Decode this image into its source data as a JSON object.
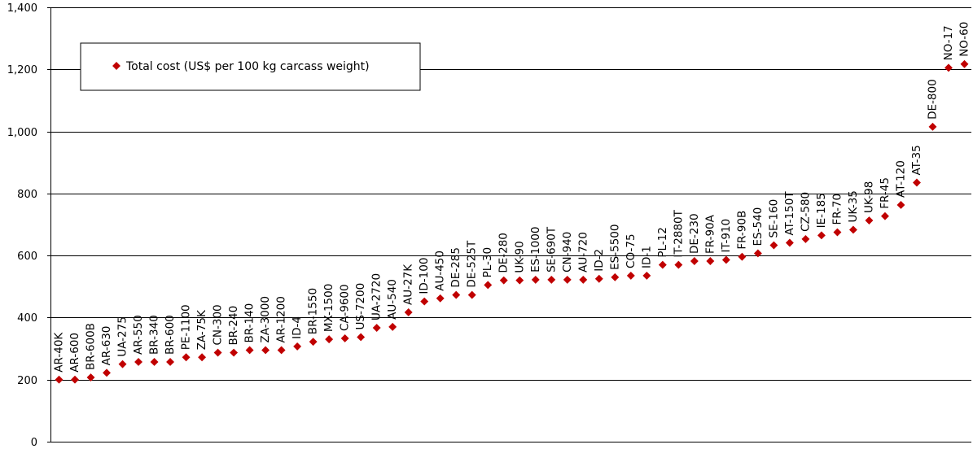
{
  "chart_data": {
    "type": "scatter",
    "title": "",
    "xlabel": "",
    "ylabel": "",
    "ylim": [
      0,
      1400
    ],
    "yticks": [
      0,
      200,
      400,
      600,
      800,
      1000,
      1200,
      1400
    ],
    "ytick_labels": [
      "0",
      "200",
      "400",
      "600",
      "800",
      "1,000",
      "1,200",
      "1,400"
    ],
    "grid": "horizontal",
    "legend_position": "upper-left",
    "series": [
      {
        "name": "Total cost (US$ per 100 kg carcass weight)",
        "color": "#C00000",
        "marker": "diamond",
        "labels": [
          "AR-40K",
          "AR-600",
          "BR-600B",
          "AR-630",
          "UA-275",
          "AR-550",
          "BR-340",
          "BR-600",
          "PE-1100",
          "ZA-75K",
          "CN-300",
          "BR-240",
          "BR-140",
          "ZA-3000",
          "AR-1200",
          "ID-4",
          "BR-1550",
          "MX-1500",
          "CA-9600",
          "US-7200",
          "UA-2720",
          "AU-540",
          "AU-27K",
          "ID-100",
          "AU-450",
          "DE-285",
          "DE-525T",
          "PL-30",
          "DE-280",
          "UK-90",
          "ES-1000",
          "SE-690T",
          "CN-940",
          "AU-720",
          "ID-2",
          "ES-5500",
          "CO-75",
          "ID-1",
          "PL-12",
          "IT-2880T",
          "DE-230",
          "FR-90A",
          "IT-910",
          "FR-90B",
          "ES-540",
          "SE-160",
          "AT-150T",
          "CZ-580",
          "IE-185",
          "FR-70",
          "UK-35",
          "UK-98",
          "FR-45",
          "AT-120",
          "AT-35",
          "DE-800",
          "NO-17",
          "NO-60"
        ],
        "values": [
          200,
          200,
          207,
          222,
          250,
          257,
          257,
          257,
          272,
          272,
          287,
          287,
          295,
          295,
          295,
          307,
          322,
          330,
          333,
          337,
          367,
          370,
          417,
          452,
          462,
          473,
          473,
          505,
          520,
          520,
          522,
          522,
          522,
          522,
          525,
          530,
          535,
          535,
          570,
          570,
          582,
          582,
          586,
          596,
          607,
          633,
          641,
          653,
          665,
          675,
          683,
          713,
          727,
          763,
          835,
          1015,
          1205,
          1217
        ]
      }
    ]
  }
}
